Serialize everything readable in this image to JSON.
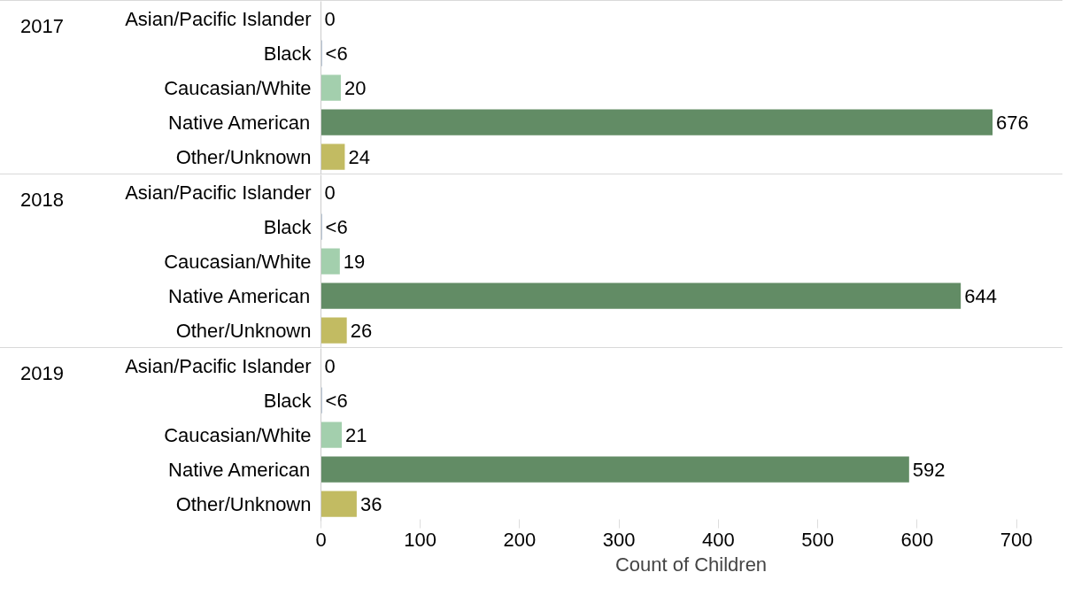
{
  "chart_data": [
    {
      "type": "bar",
      "orientation": "horizontal",
      "title": "2017",
      "categories": [
        "Asian/Pacific Islander",
        "Black",
        "Caucasian/White",
        "Native American",
        "Other/Unknown"
      ],
      "values": [
        0,
        1,
        20,
        676,
        24
      ],
      "colors": [
        "#a3cfad",
        "#8fa5bd",
        "#a3cfad",
        "#628c65",
        "#c2bb62"
      ],
      "value_labels": [
        "0",
        "<6",
        "20",
        "676",
        "24"
      ],
      "xlim": [
        0,
        745
      ],
      "xticks": [
        0,
        100,
        200,
        300,
        400,
        500,
        600,
        700
      ],
      "tick_labels": "y",
      "grid": false
    },
    {
      "type": "bar",
      "orientation": "horizontal",
      "title": "2018",
      "categories": [
        "Asian/Pacific Islander",
        "Black",
        "Caucasian/White",
        "Native American",
        "Other/Unknown"
      ],
      "values": [
        0,
        1,
        19,
        644,
        26
      ],
      "colors": [
        "#a3cfad",
        "#8fa5bd",
        "#a3cfad",
        "#628c65",
        "#c2bb62"
      ],
      "value_labels": [
        "0",
        "<6",
        "19",
        "644",
        "26"
      ],
      "xlim": [
        0,
        745
      ],
      "xticks": [
        0,
        100,
        200,
        300,
        400,
        500,
        600,
        700
      ],
      "tick_labels": "y",
      "grid": false
    },
    {
      "type": "bar",
      "orientation": "horizontal",
      "title": "2019",
      "xlabel": "Count of Children",
      "categories": [
        "Asian/Pacific Islander",
        "Black",
        "Caucasian/White",
        "Native American",
        "Other/Unknown"
      ],
      "values": [
        0,
        1,
        21,
        592,
        36
      ],
      "colors": [
        "#a3cfad",
        "#8fa5bd",
        "#a3cfad",
        "#628c65",
        "#c2bb62"
      ],
      "value_labels": [
        "0",
        "<6",
        "21",
        "592",
        "36"
      ],
      "xlim": [
        0,
        745
      ],
      "xticks": [
        0,
        100,
        200,
        300,
        400,
        500,
        600,
        700
      ],
      "grid": false
    }
  ]
}
